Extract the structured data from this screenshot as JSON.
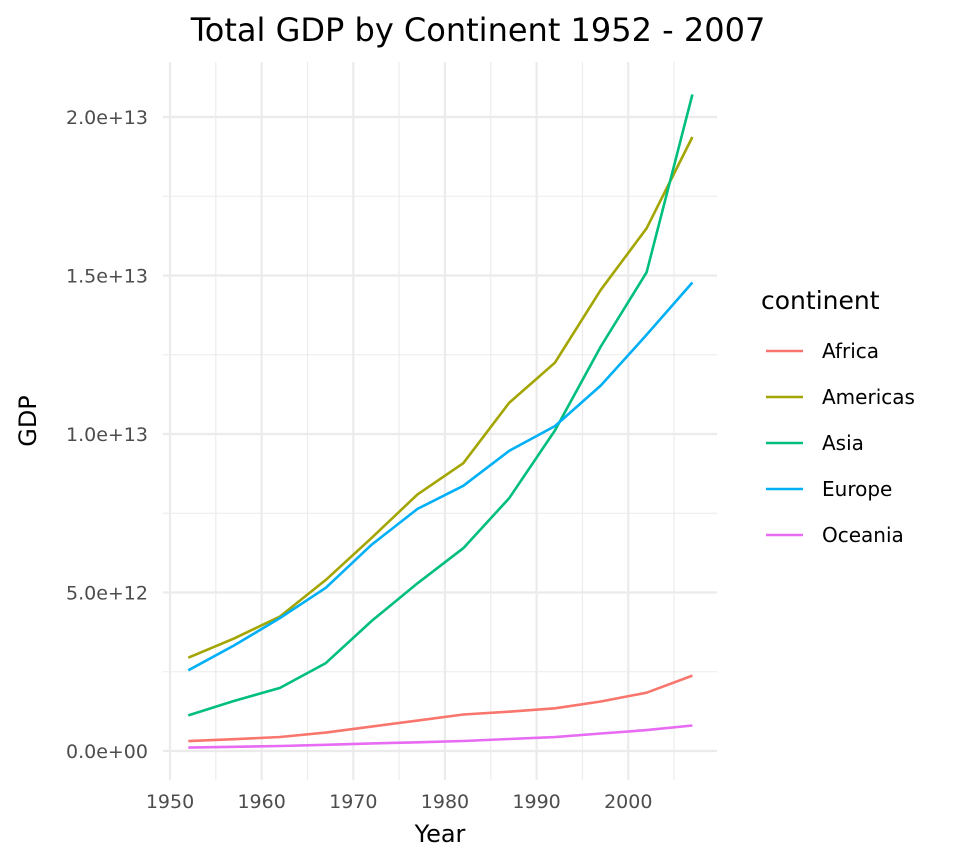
{
  "chart_data": {
    "type": "line",
    "title": "Total GDP by Continent 1952 - 2007",
    "xlabel": "Year",
    "ylabel": "GDP",
    "x": [
      1952,
      1957,
      1962,
      1967,
      1972,
      1977,
      1982,
      1987,
      1992,
      1997,
      2002,
      2007
    ],
    "xlim": [
      1949.25,
      2009.75
    ],
    "ylim": [
      -1000000000000.0,
      21700000000000.0
    ],
    "x_ticks": [
      1950,
      1960,
      1970,
      1980,
      1990,
      2000
    ],
    "x_tick_labels": [
      "1950",
      "1960",
      "1970",
      "1980",
      "1990",
      "2000"
    ],
    "y_ticks": [
      0,
      5000000000000.0,
      10000000000000.0,
      15000000000000.0,
      20000000000000.0
    ],
    "y_tick_labels": [
      "0.0e+00",
      "5.0e+12",
      "1.0e+13",
      "1.5e+13",
      "2.0e+13"
    ],
    "grid": true,
    "legend": {
      "title": "continent",
      "position": "right"
    },
    "series": [
      {
        "name": "Africa",
        "color": "#F8766D",
        "values": [
          313000000000.0,
          373000000000.0,
          443000000000.0,
          581000000000.0,
          769000000000.0,
          958000000000.0,
          1150000000000.0,
          1239000000000.0,
          1346000000000.0,
          1560000000000.0,
          1840000000000.0,
          2379000000000.0
        ]
      },
      {
        "name": "Americas",
        "color": "#A3A500",
        "values": [
          2943000000000.0,
          3553000000000.0,
          4242000000000.0,
          5398000000000.0,
          6721000000000.0,
          8096000000000.0,
          9080000000000.0,
          10980000000000.0,
          12250000000000.0,
          14550000000000.0,
          16490000000000.0,
          19370000000000.0
        ]
      },
      {
        "name": "Asia",
        "color": "#00BF7D",
        "values": [
          1123000000000.0,
          1580000000000.0,
          1989000000000.0,
          2772000000000.0,
          4102000000000.0,
          5290000000000.0,
          6397000000000.0,
          7971000000000.0,
          10110000000000.0,
          12760000000000.0,
          15100000000000.0,
          20710000000000.0
        ]
      },
      {
        "name": "Europe",
        "color": "#00B0F6",
        "values": [
          2547000000000.0,
          3331000000000.0,
          4195000000000.0,
          5148000000000.0,
          6509000000000.0,
          7638000000000.0,
          8365000000000.0,
          9466000000000.0,
          10250000000000.0,
          11530000000000.0,
          13130000000000.0,
          14780000000000.0
        ]
      },
      {
        "name": "Oceania",
        "color": "#E76BF3",
        "values": [
          107000000000.0,
          132000000000.0,
          159000000000.0,
          197000000000.0,
          240000000000.0,
          275000000000.0,
          315000000000.0,
          379000000000.0,
          438000000000.0,
          552000000000.0,
          658000000000.0,
          804000000000.0
        ]
      }
    ]
  }
}
